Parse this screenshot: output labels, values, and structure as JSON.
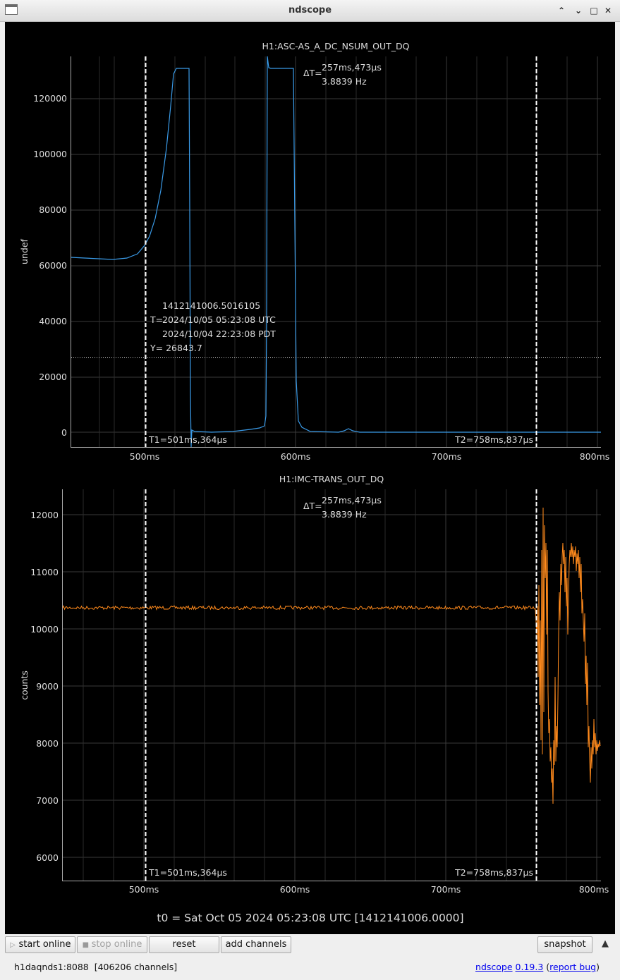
{
  "window": {
    "title": "ndscope"
  },
  "plots": [
    {
      "title": "H1:ASC-AS_A_DC_NSUM_OUT_DQ",
      "ylabel": "undef",
      "color": "#3a9be8",
      "yticks": [
        "120000",
        "100000",
        "80000",
        "60000",
        "40000",
        "20000",
        "0"
      ],
      "xticks": [
        "500ms",
        "600ms",
        "700ms",
        "800ms"
      ],
      "cursor_t1": "T1=501ms,364µs",
      "cursor_t2": "T2=758ms,837µs",
      "delta_label": "ΔT=",
      "delta_time": "257ms,473µs",
      "delta_freq": "3.8839 Hz",
      "crosshair": {
        "gps": "1412141006.5016105",
        "t_label": "T=",
        "utc": "2024/10/05 05:23:08 UTC",
        "pdt": "2024/10/04 22:23:08 PDT",
        "y_text": "Y= 26843.7"
      }
    },
    {
      "title": "H1:IMC-TRANS_OUT_DQ",
      "ylabel": "counts",
      "color": "#ff8a1c",
      "yticks": [
        "12000",
        "11000",
        "10000",
        "9000",
        "8000",
        "7000",
        "6000"
      ],
      "xticks": [
        "500ms",
        "600ms",
        "700ms",
        "800ms"
      ],
      "cursor_t1": "T1=501ms,364µs",
      "cursor_t2": "T2=758ms,837µs",
      "delta_label": "ΔT=",
      "delta_time": "257ms,473µs",
      "delta_freq": "3.8839 Hz"
    }
  ],
  "t0_label": "t0 = Sat Oct 05 2024 05:23:08 UTC [1412141006.0000]",
  "toolbar": {
    "start_online": "start online",
    "stop_online": "stop online",
    "reset": "reset",
    "add_channels": "add channels",
    "snapshot": "snapshot"
  },
  "status": {
    "server": "h1daqnds1:8088",
    "channels": "[406206 channels]",
    "app_name": "ndscope",
    "version": "0.19.3",
    "bug_link": "report bug"
  }
}
